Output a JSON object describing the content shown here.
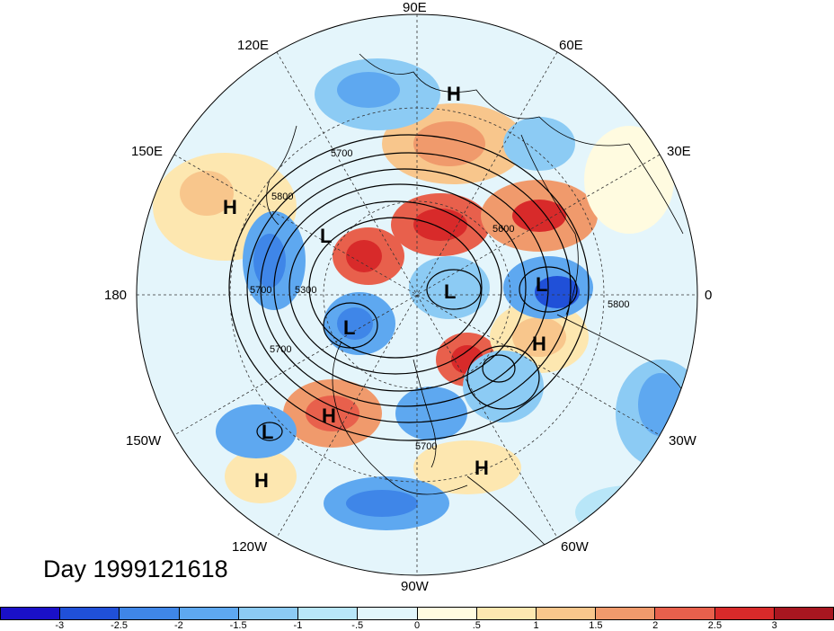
{
  "title": "Day 1999121618",
  "longitude_labels": {
    "n90e": "90E",
    "n120e": "120E",
    "n60e": "60E",
    "n150e": "150E",
    "n30e": "30E",
    "n180": "180",
    "n0": "0",
    "n150w": "150W",
    "n30w": "30W",
    "n120w": "120W",
    "n60w": "60W",
    "n90w": "90W"
  },
  "pressure_centers": [
    {
      "type": "H",
      "label": "H"
    },
    {
      "type": "H",
      "label": "H"
    },
    {
      "type": "L",
      "label": "L"
    },
    {
      "type": "L",
      "label": "L"
    },
    {
      "type": "L",
      "label": "L"
    },
    {
      "type": "L",
      "label": "L"
    },
    {
      "type": "H",
      "label": "H"
    },
    {
      "type": "H",
      "label": "H"
    },
    {
      "type": "L",
      "label": "L"
    },
    {
      "type": "H",
      "label": "H"
    },
    {
      "type": "H",
      "label": "H"
    }
  ],
  "contour_labels": [
    "5700",
    "5800",
    "5600",
    "5300",
    "5700",
    "5700",
    "5800",
    "5700"
  ],
  "colorbar": {
    "colors": [
      "#1a10c8",
      "#2050d8",
      "#3f86e8",
      "#5ea8f0",
      "#8ccbf4",
      "#b8e6f8",
      "#e2f6fb",
      "#fffbe0",
      "#fde7b0",
      "#f8c68c",
      "#f09a6c",
      "#e8604c",
      "#d82a2a",
      "#a81620"
    ],
    "tick_labels": [
      "-3",
      "-2.5",
      "-2",
      "-1.5",
      "-1",
      "-.5",
      "0",
      ".5",
      "1",
      "1.5",
      "2",
      "2.5",
      "3"
    ]
  }
}
